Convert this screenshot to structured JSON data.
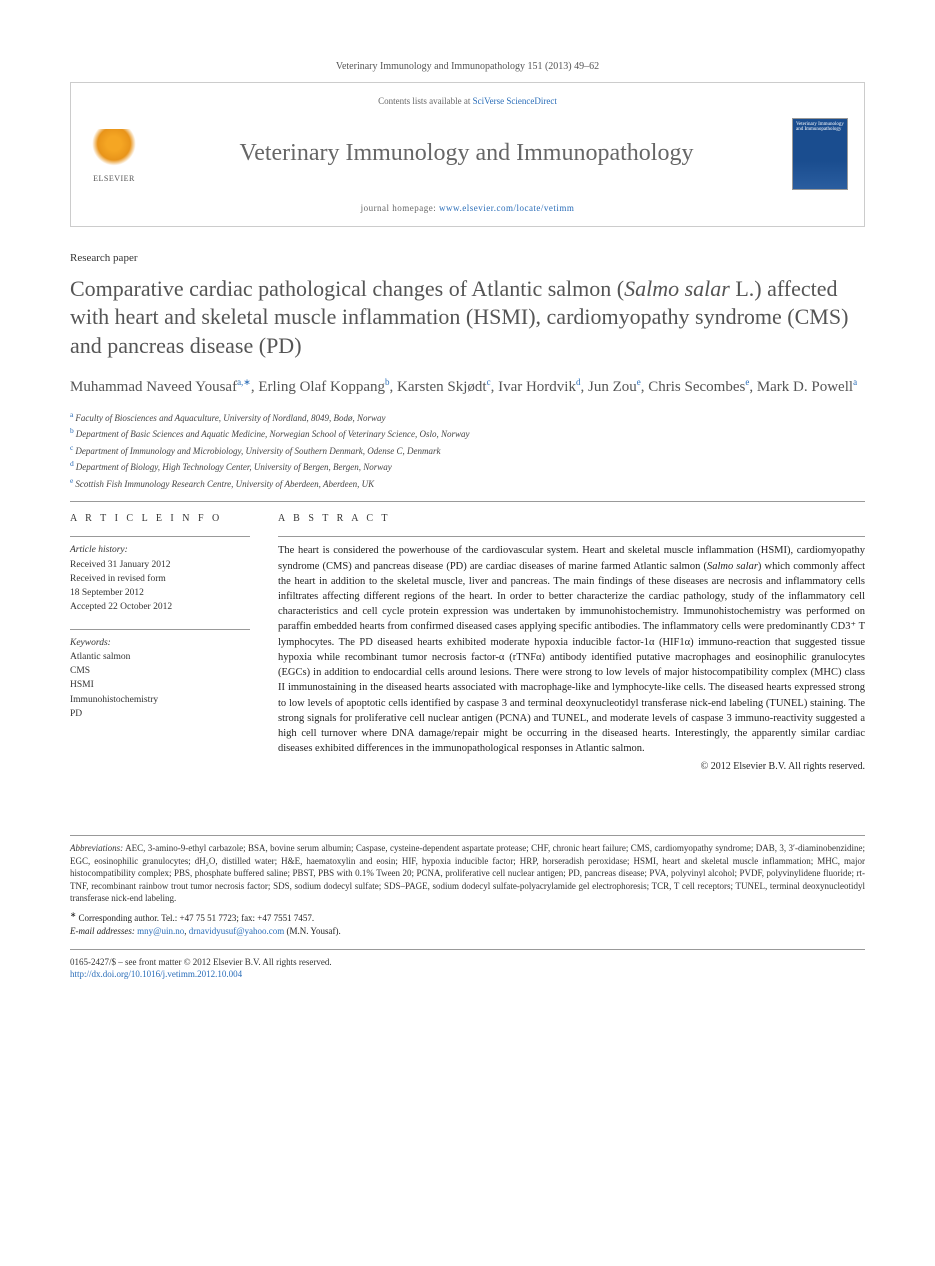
{
  "header": {
    "citation": "Veterinary Immunology and Immunopathology 151 (2013) 49–62",
    "contentsLine": "Contents lists available at ",
    "contentsLink": "SciVerse ScienceDirect",
    "journalTitle": "Veterinary Immunology and Immunopathology",
    "homepageLabel": "journal homepage: ",
    "homepageUrl": "www.elsevier.com/locate/vetimm",
    "publisher": "ELSEVIER",
    "coverText": "Veterinary Immunology and Immunopathology"
  },
  "article": {
    "type": "Research paper",
    "titlePre": "Comparative cardiac pathological changes of Atlantic salmon (",
    "titleItalic": "Salmo salar",
    "titlePost": " L.) affected with heart and skeletal muscle inflammation (HSMI), cardiomyopathy syndrome (CMS) and pancreas disease (PD)"
  },
  "authors": [
    {
      "name": "Muhammad Naveed Yousaf",
      "sup": "a,∗"
    },
    {
      "name": "Erling Olaf Koppang",
      "sup": "b"
    },
    {
      "name": "Karsten Skjødt",
      "sup": "c"
    },
    {
      "name": "Ivar Hordvik",
      "sup": "d"
    },
    {
      "name": "Jun Zou",
      "sup": "e"
    },
    {
      "name": "Chris Secombes",
      "sup": "e"
    },
    {
      "name": "Mark D. Powell",
      "sup": "a"
    }
  ],
  "affiliations": [
    {
      "sup": "a",
      "text": "Faculty of Biosciences and Aquaculture, University of Nordland, 8049, Bodø, Norway"
    },
    {
      "sup": "b",
      "text": "Department of Basic Sciences and Aquatic Medicine, Norwegian School of Veterinary Science, Oslo, Norway"
    },
    {
      "sup": "c",
      "text": "Department of Immunology and Microbiology, University of Southern Denmark, Odense C, Denmark"
    },
    {
      "sup": "d",
      "text": "Department of Biology, High Technology Center, University of Bergen, Bergen, Norway"
    },
    {
      "sup": "e",
      "text": "Scottish Fish Immunology Research Centre, University of Aberdeen, Aberdeen, UK"
    }
  ],
  "info": {
    "heading": "A R T I C L E  I N F O",
    "historyLabel": "Article history:",
    "history": [
      "Received 31 January 2012",
      "Received in revised form",
      "18 September 2012",
      "Accepted 22 October 2012"
    ],
    "keywordsLabel": "Keywords:",
    "keywords": [
      "Atlantic salmon",
      "CMS",
      "HSMI",
      "Immunohistochemistry",
      "PD"
    ]
  },
  "abstract": {
    "heading": "A B S T R A C T",
    "p1a": "The heart is considered the powerhouse of the cardiovascular system. Heart and skeletal muscle inflammation (HSMI), cardiomyopathy syndrome (CMS) and pancreas disease (PD) are cardiac diseases of marine farmed Atlantic salmon (",
    "p1i": "Salmo salar",
    "p1b": ") which commonly affect the heart in addition to the skeletal muscle, liver and pancreas. The main findings of these diseases are necrosis and inflammatory cells infiltrates affecting different regions of the heart. In order to better characterize the cardiac pathology, study of the inflammatory cell characteristics and cell cycle protein expression was undertaken by immunohistochemistry. Immunohistochemistry was performed on paraffin embedded hearts from confirmed diseased cases applying specific antibodies. The inflammatory cells were predominantly CD3⁺ T lymphocytes. The PD diseased hearts exhibited moderate hypoxia inducible factor-1α (HIF1α) immuno-reaction that suggested tissue hypoxia while recombinant tumor necrosis factor-α (rTNFα) antibody identified putative macrophages and eosinophilic granulocytes (EGCs) in addition to endocardial cells around lesions. There were strong to low levels of major histocompatibility complex (MHC) class II immunostaining in the diseased hearts associated with macrophage-like and lymphocyte-like cells. The diseased hearts expressed strong to low levels of apoptotic cells identified by caspase 3 and terminal deoxynucleotidyl transferase nick-end labeling (TUNEL) staining. The strong signals for proliferative cell nuclear antigen (PCNA) and TUNEL, and moderate levels of caspase 3 immuno-reactivity suggested a high cell turnover where DNA damage/repair might be occurring in the diseased hearts. Interestingly, the apparently similar cardiac diseases exhibited differences in the immunopathological responses in Atlantic salmon.",
    "copyright": "© 2012 Elsevier B.V. All rights reserved."
  },
  "abbrev": {
    "label": "Abbreviations:",
    "text": " AEC, 3-amino-9-ethyl carbazole; BSA, bovine serum albumin; Caspase, cysteine-dependent aspartate protease; CHF, chronic heart failure; CMS, cardiomyopathy syndrome; DAB, 3, 3′-diaminobenzidine; EGC, eosinophilic granulocytes; dH₂O, distilled water; H&E, haematoxylin and eosin; HIF, hypoxia inducible factor; HRP, horseradish peroxidase; HSMI, heart and skeletal muscle inflammation; MHC, major histocompatibility complex; PBS, phosphate buffered saline; PBST, PBS with 0.1% Tween 20; PCNA, proliferative cell nuclear antigen; PD, pancreas disease; PVA, polyvinyl alcohol; PVDF, polyvinylidene fluoride; rt-TNF, recombinant rainbow trout tumor necrosis factor; SDS, sodium dodecyl sulfate; SDS–PAGE, sodium dodecyl sulfate-polyacrylamide gel electrophoresis; TCR, T cell receptors; TUNEL, terminal deoxynucleotidyl transferase nick-end labeling."
  },
  "corresponding": {
    "star": "∗",
    "text": " Corresponding author. Tel.: +47 75 51 7723; fax: +47 7551 7457.",
    "emailLabel": "E-mail addresses:",
    "email1": "mny@uin.no",
    "sep": ", ",
    "email2": "drnavidyusuf@yahoo.com",
    "suffix": " (M.N. Yousaf)."
  },
  "footer": {
    "line1": "0165-2427/$ – see front matter © 2012 Elsevier B.V. All rights reserved.",
    "doi": "http://dx.doi.org/10.1016/j.vetimm.2012.10.004"
  },
  "colors": {
    "link": "#2a6db8",
    "titleGray": "#555555",
    "border": "#999999",
    "coverBlue": "#1a4d8f"
  }
}
